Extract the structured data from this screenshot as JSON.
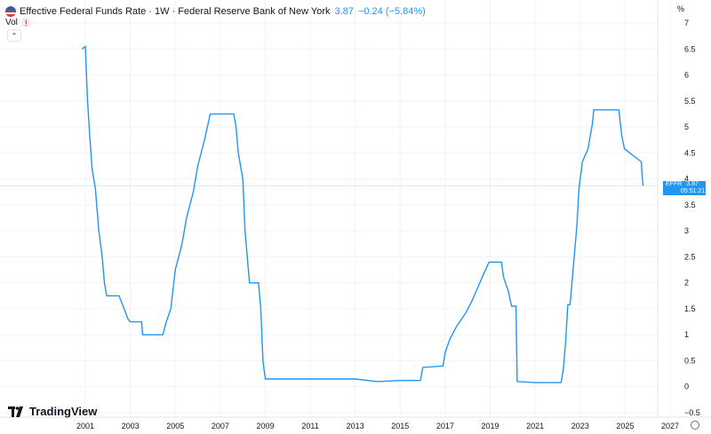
{
  "header": {
    "title": "Effective Federal Funds Rate · 1W · Federal Reserve Bank of New York",
    "last_value": "3.87",
    "change": "−0.24 (−5.84%)"
  },
  "indicator": {
    "label": "Vol"
  },
  "logo": {
    "text": "TradingView"
  },
  "price_tag": {
    "symbol": "EFFR",
    "value": "3.87",
    "countdown": "05:51:21"
  },
  "colors": {
    "line": "#2196f3",
    "grid": "#f0f3fa",
    "tag": "#2196f3"
  },
  "icons": [
    "us-flag-icon",
    "warning-icon",
    "chevron-up-icon",
    "tradingview-logo-icon",
    "gear-icon"
  ],
  "chart_data": {
    "type": "line",
    "series": [
      {
        "x": [
          2000.85,
          2001.0,
          2001.05,
          2001.1,
          2001.2,
          2001.3,
          2001.45,
          2001.6,
          2001.75,
          2001.85,
          2001.95,
          2002.1,
          2002.5,
          2002.9,
          2003.0,
          2003.5,
          2003.55,
          2004.0,
          2004.45,
          2004.6,
          2004.8,
          2005.0,
          2005.3,
          2005.5,
          2005.8,
          2006.0,
          2006.3,
          2006.55,
          2006.8,
          2007.2,
          2007.6,
          2007.7,
          2007.8,
          2008.0,
          2008.1,
          2008.3,
          2008.7,
          2008.8,
          2008.9,
          2009.0,
          2010.0,
          2011.0,
          2012.0,
          2013.0,
          2014.0,
          2015.0,
          2015.9,
          2016.0,
          2016.9,
          2017.0,
          2017.2,
          2017.5,
          2017.9,
          2018.2,
          2018.45,
          2018.7,
          2018.95,
          2019.5,
          2019.6,
          2019.8,
          2019.95,
          2020.15,
          2020.2,
          2021.0,
          2022.15,
          2022.25,
          2022.35,
          2022.45,
          2022.55,
          2022.7,
          2022.85,
          2022.95,
          2023.1,
          2023.35,
          2023.55,
          2023.6,
          2024.3,
          2024.72,
          2024.85,
          2024.97,
          2025.72,
          2025.75,
          2025.8
        ],
        "y": [
          6.5,
          6.55,
          6.0,
          5.5,
          4.8,
          4.2,
          3.8,
          3.0,
          2.5,
          2.0,
          1.75,
          1.75,
          1.75,
          1.3,
          1.25,
          1.25,
          1.0,
          1.0,
          1.0,
          1.25,
          1.5,
          2.25,
          2.75,
          3.25,
          3.75,
          4.25,
          4.75,
          5.25,
          5.25,
          5.25,
          5.25,
          5.0,
          4.5,
          4.0,
          3.0,
          2.0,
          2.0,
          1.5,
          0.5,
          0.15,
          0.15,
          0.15,
          0.15,
          0.15,
          0.1,
          0.12,
          0.12,
          0.37,
          0.4,
          0.66,
          0.91,
          1.16,
          1.41,
          1.66,
          1.91,
          2.16,
          2.4,
          2.4,
          2.1,
          1.85,
          1.55,
          1.55,
          0.1,
          0.08,
          0.08,
          0.33,
          0.83,
          1.58,
          1.58,
          2.33,
          3.08,
          3.83,
          4.33,
          4.58,
          5.08,
          5.33,
          5.33,
          5.33,
          4.83,
          4.58,
          4.33,
          4.08,
          3.87
        ]
      }
    ],
    "x_ticks": [
      "2001",
      "2003",
      "2005",
      "2007",
      "2009",
      "2011",
      "2013",
      "2015",
      "2017",
      "2019",
      "2021",
      "2023",
      "2025",
      "2027"
    ],
    "y_ticks": [
      "−0.5",
      "0",
      "0.5",
      "1",
      "1.5",
      "2",
      "2.5",
      "3",
      "3.5",
      "4",
      "4.5",
      "5",
      "5.5",
      "6",
      "6.5",
      "7"
    ],
    "y_unit": "%",
    "xlim": [
      2000.0,
      2028.0
    ],
    "ylim": [
      -0.5,
      7.0
    ],
    "grid": true
  }
}
